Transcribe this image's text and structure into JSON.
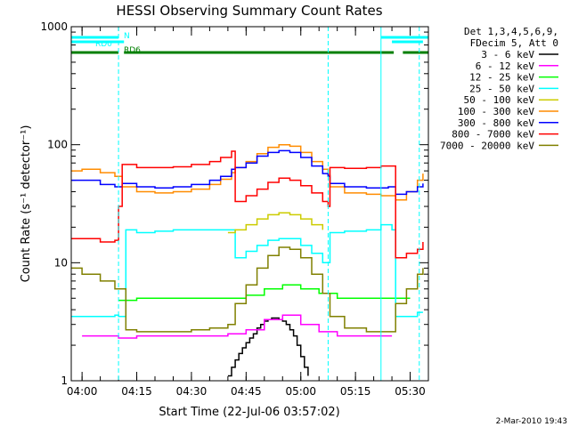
{
  "chart_data": {
    "type": "line",
    "title": "HESSI Observing Summary Count Rates",
    "xlabel": "Start Time (22-Jul-06 03:57:02)",
    "ylabel": "Count Rate (s⁻¹ detector⁻¹)",
    "y_scale": "log",
    "xlim": [
      "03:57:02",
      "05:35:00"
    ],
    "ylim": [
      1,
      1000
    ],
    "x_ticks": [
      "04:00",
      "04:15",
      "04:30",
      "04:45",
      "05:00",
      "05:15",
      "05:30"
    ],
    "y_ticks": [
      "1",
      "10",
      "100",
      "1000"
    ],
    "legend_header": [
      "Det 1,3,4,5,6,9,",
      "FDecim 5, Att 0"
    ],
    "legend_position": "right",
    "flags": [
      {
        "label": "N",
        "color": "#00ffff",
        "segments": [
          [
            "03:57:02",
            "04:10:00"
          ],
          [
            "05:22:00",
            "05:35:00"
          ]
        ]
      },
      {
        "label": "RD0",
        "color": "#00ffff",
        "segments": [
          [
            "03:57:02",
            "04:11:30"
          ],
          [
            "05:25:00",
            "05:33:30"
          ]
        ]
      },
      {
        "label": "RD6",
        "color": "#007f00",
        "segments": [
          [
            "03:57:02",
            "04:10:00"
          ],
          [
            "04:11:30",
            "04:41:30"
          ],
          [
            "04:41:30",
            "05:07:30"
          ],
          [
            "05:07:30",
            "05:25:30"
          ],
          [
            "05:28:00",
            "05:35:00"
          ]
        ]
      }
    ],
    "vlines": {
      "solid": [
        "05:22:00"
      ],
      "dashed": [
        "04:10:00",
        "05:07:30",
        "05:32:30"
      ],
      "color": "#00ffff"
    },
    "series": [
      {
        "name": "3 - 6 keV",
        "color": "#000000",
        "x": [
          "04:40:00",
          "04:41:00",
          "04:42:00",
          "04:43:00",
          "04:44:00",
          "04:45:00",
          "04:46:00",
          "04:47:00",
          "04:48:00",
          "04:49:00",
          "04:50:00",
          "04:51:00",
          "04:52:00",
          "04:53:00",
          "04:54:00",
          "04:55:00",
          "04:56:00",
          "04:57:00",
          "04:58:00",
          "04:59:00",
          "05:00:00",
          "05:01:00",
          "05:02:00"
        ],
        "y": [
          1.1,
          1.3,
          1.5,
          1.7,
          1.9,
          2.1,
          2.3,
          2.5,
          2.8,
          3.0,
          3.2,
          3.3,
          3.4,
          3.4,
          3.3,
          3.2,
          3.0,
          2.7,
          2.4,
          2.0,
          1.6,
          1.3,
          1.1
        ]
      },
      {
        "name": "6 - 12 keV",
        "color": "#ff00ff",
        "x": [
          "04:00:00",
          "04:05:00",
          "04:10:00",
          "04:15:00",
          "04:20:00",
          "04:25:00",
          "04:30:00",
          "04:35:00",
          "04:40:00",
          "04:45:00",
          "04:50:00",
          "04:55:00",
          "05:00:00",
          "05:05:00",
          "05:10:00",
          "05:15:00",
          "05:20:00",
          "05:25:00"
        ],
        "y": [
          2.4,
          2.4,
          2.3,
          2.4,
          2.4,
          2.4,
          2.4,
          2.4,
          2.5,
          2.7,
          3.3,
          3.6,
          3.0,
          2.6,
          2.4,
          2.4,
          2.4,
          2.4
        ]
      },
      {
        "name": "12 - 25 keV",
        "color": "#00ff00",
        "x": [
          "04:10:00",
          "04:15:00",
          "04:20:00",
          "04:25:00",
          "04:30:00",
          "04:35:00",
          "04:40:00",
          "04:45:00",
          "04:50:00",
          "04:55:00",
          "05:00:00",
          "05:05:00",
          "05:10:00",
          "05:15:00",
          "05:20:00",
          "05:25:00",
          "05:30:00"
        ],
        "y": [
          4.8,
          5.0,
          5.0,
          5.0,
          5.0,
          5.0,
          5.0,
          5.3,
          6.0,
          6.5,
          6.0,
          5.5,
          5.0,
          5.0,
          5.0,
          5.0,
          5.0
        ]
      },
      {
        "name": "25 - 50 keV",
        "color": "#00ffff",
        "x": [
          "03:57:02",
          "04:05:00",
          "04:09:00",
          "04:10:00",
          "04:12:00",
          "04:15:00",
          "04:20:00",
          "04:25:00",
          "04:30:00",
          "04:35:00",
          "04:40:00",
          "04:42:00",
          "04:45:00",
          "04:48:00",
          "04:51:00",
          "04:54:00",
          "04:57:00",
          "05:00:00",
          "05:03:00",
          "05:06:00",
          "05:08:00",
          "05:12:00",
          "05:18:00",
          "05:22:00",
          "05:25:00",
          "05:26:00",
          "05:29:00",
          "05:32:00",
          "05:33:30"
        ],
        "y": [
          3.5,
          3.5,
          3.6,
          3.5,
          19,
          18,
          18.5,
          19,
          19,
          19,
          19,
          11,
          12.5,
          14,
          15.5,
          16,
          16,
          14,
          12,
          10,
          18,
          18.5,
          19,
          21,
          19,
          3.5,
          3.5,
          3.8,
          3.8
        ]
      },
      {
        "name": "50 - 100 keV",
        "color": "#cccc00",
        "x": [
          "04:40:00",
          "04:42:00",
          "04:45:00",
          "04:48:00",
          "04:51:00",
          "04:54:00",
          "04:57:00",
          "05:00:00",
          "05:03:00",
          "05:06:00"
        ],
        "y": [
          18,
          19,
          21,
          23.5,
          25.5,
          26.5,
          25.5,
          23.5,
          21,
          19
        ]
      },
      {
        "name": "100 - 300 keV",
        "color": "#ff8c00",
        "x": [
          "03:57:02",
          "04:00:00",
          "04:05:00",
          "04:09:00",
          "04:11:00",
          "04:15:00",
          "04:20:00",
          "04:25:00",
          "04:30:00",
          "04:35:00",
          "04:38:00",
          "04:41:00",
          "04:42:00",
          "04:45:00",
          "04:48:00",
          "04:51:00",
          "04:54:00",
          "04:57:00",
          "05:00:00",
          "05:03:00",
          "05:06:00",
          "05:07:30",
          "05:08:00",
          "05:12:00",
          "05:18:00",
          "05:22:00",
          "05:24:00",
          "05:26:00",
          "05:29:00",
          "05:32:00",
          "05:33:30"
        ],
        "y": [
          60,
          62,
          58,
          54,
          44,
          40,
          39,
          40,
          42,
          46,
          51,
          58,
          64,
          72,
          84,
          95,
          100,
          97,
          86,
          72,
          62,
          55,
          44,
          39,
          38,
          37,
          37,
          34,
          40,
          50,
          57
        ]
      },
      {
        "name": "300 - 800 keV",
        "color": "#0000ff",
        "x": [
          "03:57:02",
          "04:00:00",
          "04:05:00",
          "04:09:00",
          "04:11:00",
          "04:15:00",
          "04:20:00",
          "04:25:00",
          "04:30:00",
          "04:35:00",
          "04:38:00",
          "04:41:00",
          "04:42:00",
          "04:45:00",
          "04:48:00",
          "04:51:00",
          "04:54:00",
          "04:57:00",
          "05:00:00",
          "05:03:00",
          "05:06:00",
          "05:07:30",
          "05:08:00",
          "05:12:00",
          "05:18:00",
          "05:22:00",
          "05:24:00",
          "05:26:00",
          "05:29:00",
          "05:32:00",
          "05:33:30"
        ],
        "y": [
          50,
          50,
          46,
          44,
          47,
          44,
          43,
          44,
          46,
          50,
          54,
          62,
          64,
          70,
          80,
          86,
          89,
          86,
          78,
          66,
          57,
          54,
          47,
          44,
          43,
          43,
          44,
          38,
          40,
          44,
          47
        ]
      },
      {
        "name": "800 - 7000 keV",
        "color": "#ff0000",
        "x": [
          "03:57:02",
          "04:00:00",
          "04:05:00",
          "04:09:00",
          "04:10:00",
          "04:11:00",
          "04:15:00",
          "04:20:00",
          "04:25:00",
          "04:30:00",
          "04:35:00",
          "04:38:00",
          "04:41:00",
          "04:42:00",
          "04:45:00",
          "04:48:00",
          "04:51:00",
          "04:54:00",
          "04:57:00",
          "05:00:00",
          "05:03:00",
          "05:06:00",
          "05:07:30",
          "05:08:00",
          "05:12:00",
          "05:18:00",
          "05:22:00",
          "05:25:00",
          "05:26:00",
          "05:29:00",
          "05:32:00",
          "05:33:30"
        ],
        "y": [
          16,
          16,
          15,
          15.5,
          30,
          68,
          64,
          64,
          65,
          68,
          72,
          78,
          88,
          33,
          37,
          42,
          48,
          52,
          50,
          45,
          39,
          33,
          30,
          64,
          63,
          64,
          66,
          66,
          11,
          12,
          13,
          15
        ]
      },
      {
        "name": "7000 - 20000 keV",
        "color": "#808000",
        "x": [
          "03:57:02",
          "04:00:00",
          "04:05:00",
          "04:09:00",
          "04:12:00",
          "04:15:00",
          "04:20:00",
          "04:25:00",
          "04:30:00",
          "04:35:00",
          "04:40:00",
          "04:42:00",
          "04:45:00",
          "04:48:00",
          "04:51:00",
          "04:54:00",
          "04:57:00",
          "05:00:00",
          "05:03:00",
          "05:06:00",
          "05:08:00",
          "05:12:00",
          "05:18:00",
          "05:22:00",
          "05:25:00",
          "05:26:00",
          "05:29:00",
          "05:32:00",
          "05:33:30"
        ],
        "y": [
          9,
          8,
          7,
          6,
          2.7,
          2.6,
          2.6,
          2.6,
          2.7,
          2.8,
          3.0,
          4.5,
          6.5,
          9,
          11.5,
          13.5,
          13,
          11,
          8,
          5.5,
          3.5,
          2.8,
          2.6,
          2.6,
          2.6,
          4.5,
          6,
          8,
          9
        ]
      }
    ]
  },
  "footer": {
    "date_stamp": "2-Mar-2010 19:43"
  }
}
